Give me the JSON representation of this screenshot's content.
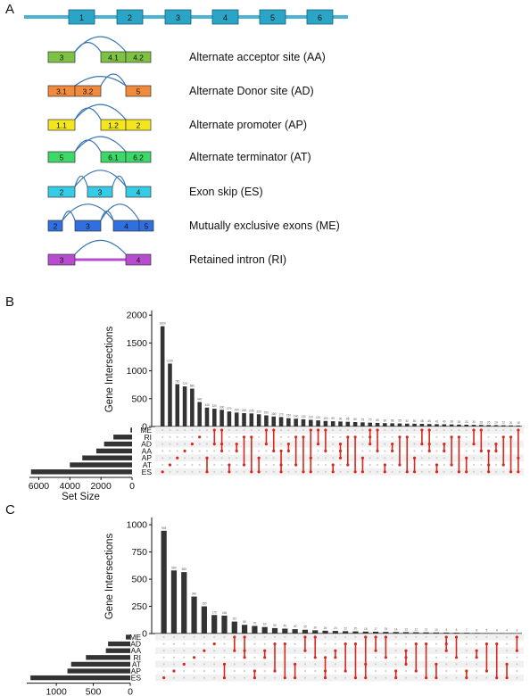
{
  "panel_labels": {
    "a": "A",
    "b": "B",
    "c": "C"
  },
  "gene_model": {
    "exon_labels": [
      "1",
      "2",
      "3",
      "4",
      "5",
      "6"
    ],
    "colors": {
      "exon": "#2aa5c6",
      "line": "#4fb2d3"
    }
  },
  "events": [
    {
      "id": "AA",
      "label": "Alternate acceptor site (AA)",
      "color": "#7dc242",
      "exons": [
        "3",
        "4.1",
        "4.2"
      ]
    },
    {
      "id": "AD",
      "label": "Alternate Donor site (AD)",
      "color": "#f08a3c",
      "exons": [
        "3.1",
        "3.2",
        "5"
      ]
    },
    {
      "id": "AP",
      "label": "Alternate promoter (AP)",
      "color": "#f4e61e",
      "exons": [
        "1.1",
        "1.2",
        "2"
      ]
    },
    {
      "id": "AT",
      "label": "Alternate terminator (AT)",
      "color": "#3ed86a",
      "exons": [
        "5",
        "6.1",
        "6.2"
      ]
    },
    {
      "id": "ES",
      "label": "Exon skip (ES)",
      "color": "#35cde6",
      "exons": [
        "2",
        "3",
        "4"
      ]
    },
    {
      "id": "ME",
      "label": "Mutually exclusive exons (ME)",
      "color": "#2f6fe0",
      "exons": [
        "2",
        "3",
        "4",
        "5"
      ]
    },
    {
      "id": "RI",
      "label": "Retained intron (RI)",
      "color": "#b84cd0",
      "exons": [
        "3",
        "4"
      ]
    }
  ],
  "arc_color": "#3a76b5",
  "dot_color": "#d62a20",
  "chart_data": [
    {
      "type": "bar",
      "panel": "B",
      "ylabel": "Gene Intersections",
      "yticks": [
        0,
        500,
        1000,
        1500,
        2000
      ],
      "ylim": [
        0,
        2050
      ],
      "values": [
        1800,
        1130,
        760,
        720,
        680,
        440,
        340,
        320,
        300,
        270,
        250,
        240,
        235,
        220,
        200,
        180,
        170,
        150,
        140,
        130,
        120,
        110,
        100,
        95,
        90,
        85,
        80,
        75,
        70,
        65,
        60,
        58,
        55,
        52,
        50,
        48,
        45,
        42,
        40,
        38,
        35,
        33,
        30,
        28,
        26,
        24,
        22,
        20,
        18
      ],
      "sets": [
        "ME",
        "RI",
        "AD",
        "AA",
        "AP",
        "AT",
        "ES"
      ],
      "set_sizes": [
        100,
        1200,
        1800,
        2300,
        3200,
        4000,
        6500
      ],
      "set_size_label": "Set Size",
      "set_size_ticks": [
        6000,
        4000,
        2000,
        0
      ],
      "set_size_max": 6600
    },
    {
      "type": "bar",
      "panel": "C",
      "ylabel": "Gene Intersections",
      "yticks": [
        0,
        250,
        500,
        750,
        1000
      ],
      "ylim": [
        0,
        1050
      ],
      "values": [
        945,
        580,
        565,
        340,
        250,
        170,
        165,
        110,
        80,
        70,
        60,
        50,
        45,
        40,
        35,
        30,
        26,
        24,
        22,
        20,
        18,
        17,
        15,
        14,
        13,
        12,
        11,
        10,
        9,
        8,
        7,
        6,
        5,
        4,
        4,
        3
      ],
      "sets": [
        "ME",
        "AD",
        "AA",
        "RI",
        "AT",
        "AP",
        "ES"
      ],
      "set_sizes": [
        60,
        300,
        330,
        600,
        800,
        850,
        1350
      ],
      "set_size_label": "Set Size",
      "set_size_ticks": [
        1000,
        500,
        0
      ],
      "set_size_max": 1400
    }
  ]
}
